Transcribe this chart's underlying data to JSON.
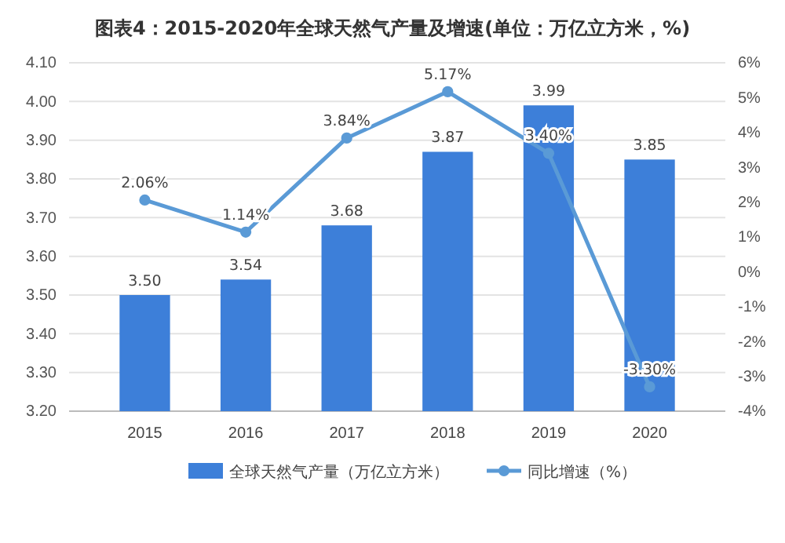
{
  "chart_data": {
    "type": "bar",
    "title": "图表4：2015-2020年全球天然气产量及增速(单位：万亿立方米，%)",
    "categories": [
      "2015",
      "2016",
      "2017",
      "2018",
      "2019",
      "2020"
    ],
    "series": [
      {
        "name": "全球天然气产量（万亿立方米）",
        "color": "#3d7fd9",
        "values": [
          3.5,
          3.54,
          3.68,
          3.87,
          3.99,
          3.85
        ],
        "value_labels": [
          "3.50",
          "3.54",
          "3.68",
          "3.87",
          "3.99",
          "3.85"
        ]
      },
      {
        "name": "同比增速（%）",
        "type": "line",
        "axis": "y2",
        "color": "#5a9ad6",
        "values": [
          2.06,
          1.14,
          3.84,
          5.17,
          3.4,
          -3.3
        ],
        "value_labels": [
          "2.06%",
          "1.14%",
          "3.84%",
          "5.17%",
          "3.40%",
          "-3.30%"
        ]
      }
    ],
    "ylim": [
      3.2,
      4.1
    ],
    "yticks": [
      {
        "value": 3.2,
        "label": "3.20"
      },
      {
        "value": 3.3,
        "label": "3.30"
      },
      {
        "value": 3.4,
        "label": "3.40"
      },
      {
        "value": 3.5,
        "label": "3.50"
      },
      {
        "value": 3.6,
        "label": "3.60"
      },
      {
        "value": 3.7,
        "label": "3.70"
      },
      {
        "value": 3.8,
        "label": "3.80"
      },
      {
        "value": 3.9,
        "label": "3.90"
      },
      {
        "value": 4.0,
        "label": "4.00"
      },
      {
        "value": 4.1,
        "label": "4.10"
      }
    ],
    "y2lim": [
      -4,
      6
    ],
    "y2ticks": [
      {
        "value": -4,
        "label": "-4%"
      },
      {
        "value": -3,
        "label": "-3%"
      },
      {
        "value": -2,
        "label": "-2%"
      },
      {
        "value": -1,
        "label": "-1%"
      },
      {
        "value": 0,
        "label": "0%"
      },
      {
        "value": 1,
        "label": "1%"
      },
      {
        "value": 2,
        "label": "2%"
      },
      {
        "value": 3,
        "label": "3%"
      },
      {
        "value": 4,
        "label": "4%"
      },
      {
        "value": 5,
        "label": "5%"
      },
      {
        "value": 6,
        "label": "6%"
      }
    ],
    "grid": "y",
    "legend": "bottom",
    "marker": "circle",
    "line_style": "solid"
  }
}
